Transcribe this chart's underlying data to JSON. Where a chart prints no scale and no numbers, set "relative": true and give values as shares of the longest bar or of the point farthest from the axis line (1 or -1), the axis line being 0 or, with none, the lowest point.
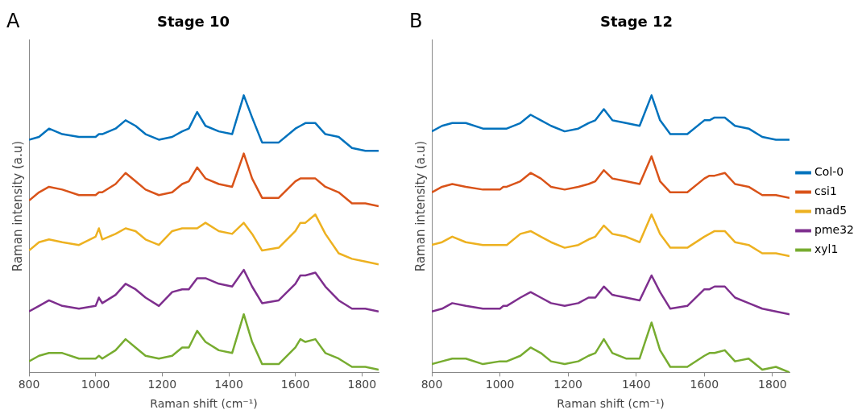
{
  "chart_data": [
    {
      "type": "line",
      "title": "Stage 10",
      "xlabel": "Raman shift (cm⁻¹)",
      "ylabel": "Raman intensity (a.u)",
      "annotations": [
        "A"
      ],
      "relative": true,
      "grid": false,
      "legend": false,
      "tick_labels": "x",
      "xlim": [
        800,
        1850
      ],
      "xticks": [
        800,
        1000,
        1200,
        1400,
        1600,
        1800
      ],
      "x": [
        800,
        830,
        860,
        900,
        950,
        1000,
        1010,
        1020,
        1060,
        1090,
        1120,
        1150,
        1190,
        1230,
        1260,
        1280,
        1305,
        1330,
        1370,
        1410,
        1445,
        1470,
        1500,
        1550,
        1600,
        1615,
        1630,
        1660,
        1690,
        1730,
        1770,
        1810,
        1850
      ],
      "series": [
        {
          "color": "#0072bd",
          "values": [
            0.84,
            0.85,
            0.88,
            0.86,
            0.85,
            0.85,
            0.86,
            0.86,
            0.88,
            0.91,
            0.89,
            0.86,
            0.84,
            0.85,
            0.87,
            0.88,
            0.94,
            0.89,
            0.87,
            0.86,
            1.0,
            0.92,
            0.83,
            0.83,
            0.88,
            0.89,
            0.9,
            0.9,
            0.86,
            0.85,
            0.81,
            0.8,
            0.8
          ]
        },
        {
          "color": "#d95319",
          "values": [
            0.62,
            0.65,
            0.67,
            0.66,
            0.64,
            0.64,
            0.65,
            0.65,
            0.68,
            0.72,
            0.69,
            0.66,
            0.64,
            0.65,
            0.68,
            0.69,
            0.74,
            0.7,
            0.68,
            0.67,
            0.79,
            0.7,
            0.63,
            0.63,
            0.69,
            0.7,
            0.7,
            0.7,
            0.67,
            0.65,
            0.61,
            0.61,
            0.6
          ]
        },
        {
          "color": "#edb120",
          "values": [
            0.44,
            0.47,
            0.48,
            0.47,
            0.46,
            0.49,
            0.52,
            0.48,
            0.5,
            0.52,
            0.51,
            0.48,
            0.46,
            0.51,
            0.52,
            0.52,
            0.52,
            0.54,
            0.51,
            0.5,
            0.54,
            0.5,
            0.44,
            0.45,
            0.51,
            0.54,
            0.54,
            0.57,
            0.5,
            0.43,
            0.41,
            0.4,
            0.39
          ]
        },
        {
          "color": "#7e2f8e",
          "values": [
            0.22,
            0.24,
            0.26,
            0.24,
            0.23,
            0.24,
            0.27,
            0.25,
            0.28,
            0.32,
            0.3,
            0.27,
            0.24,
            0.29,
            0.3,
            0.3,
            0.34,
            0.34,
            0.32,
            0.31,
            0.37,
            0.31,
            0.25,
            0.26,
            0.32,
            0.35,
            0.35,
            0.36,
            0.31,
            0.26,
            0.23,
            0.23,
            0.22
          ]
        },
        {
          "color": "#77ac30",
          "values": [
            0.04,
            0.06,
            0.07,
            0.07,
            0.05,
            0.05,
            0.06,
            0.05,
            0.08,
            0.12,
            0.09,
            0.06,
            0.05,
            0.06,
            0.09,
            0.09,
            0.15,
            0.11,
            0.08,
            0.07,
            0.21,
            0.11,
            0.03,
            0.03,
            0.09,
            0.12,
            0.11,
            0.12,
            0.07,
            0.05,
            0.02,
            0.02,
            0.01
          ]
        }
      ]
    },
    {
      "type": "line",
      "title": "Stage 12",
      "xlabel": "Raman shift (cm⁻¹)",
      "ylabel": "Raman intensity (a.u)",
      "annotations": [
        "B"
      ],
      "relative": true,
      "grid": false,
      "legend": "right",
      "tick_labels": "x",
      "xlim": [
        800,
        1850
      ],
      "xticks": [
        800,
        1000,
        1200,
        1400,
        1600,
        1800
      ],
      "x": [
        800,
        830,
        860,
        900,
        950,
        1000,
        1010,
        1020,
        1060,
        1090,
        1120,
        1150,
        1190,
        1230,
        1260,
        1280,
        1305,
        1330,
        1370,
        1410,
        1445,
        1470,
        1500,
        1550,
        1600,
        1615,
        1630,
        1660,
        1690,
        1730,
        1770,
        1810,
        1850
      ],
      "series": [
        {
          "name": "Col-0",
          "color": "#0072bd",
          "values": [
            0.87,
            0.89,
            0.9,
            0.9,
            0.88,
            0.88,
            0.88,
            0.88,
            0.9,
            0.93,
            0.91,
            0.89,
            0.87,
            0.88,
            0.9,
            0.91,
            0.95,
            0.91,
            0.9,
            0.89,
            1.0,
            0.91,
            0.86,
            0.86,
            0.91,
            0.91,
            0.92,
            0.92,
            0.89,
            0.88,
            0.85,
            0.84,
            0.84
          ]
        },
        {
          "name": "csi1",
          "color": "#d95319",
          "values": [
            0.65,
            0.67,
            0.68,
            0.67,
            0.66,
            0.66,
            0.67,
            0.67,
            0.69,
            0.72,
            0.7,
            0.67,
            0.66,
            0.67,
            0.68,
            0.69,
            0.73,
            0.7,
            0.69,
            0.68,
            0.78,
            0.69,
            0.65,
            0.65,
            0.7,
            0.71,
            0.71,
            0.72,
            0.68,
            0.67,
            0.64,
            0.64,
            0.63
          ]
        },
        {
          "name": "mad5",
          "color": "#edb120",
          "values": [
            0.46,
            0.47,
            0.49,
            0.47,
            0.46,
            0.46,
            0.46,
            0.46,
            0.5,
            0.51,
            0.49,
            0.47,
            0.45,
            0.46,
            0.48,
            0.49,
            0.53,
            0.5,
            0.49,
            0.47,
            0.57,
            0.5,
            0.45,
            0.45,
            0.49,
            0.5,
            0.51,
            0.51,
            0.47,
            0.46,
            0.43,
            0.43,
            0.42
          ]
        },
        {
          "name": "pme32",
          "color": "#7e2f8e",
          "values": [
            0.22,
            0.23,
            0.25,
            0.24,
            0.23,
            0.23,
            0.24,
            0.24,
            0.27,
            0.29,
            0.27,
            0.25,
            0.24,
            0.25,
            0.27,
            0.27,
            0.31,
            0.28,
            0.27,
            0.26,
            0.35,
            0.29,
            0.23,
            0.24,
            0.3,
            0.3,
            0.31,
            0.31,
            0.27,
            0.25,
            0.23,
            0.22,
            0.21
          ]
        },
        {
          "name": "xyl1",
          "color": "#77ac30",
          "values": [
            0.03,
            0.04,
            0.05,
            0.05,
            0.03,
            0.04,
            0.04,
            0.04,
            0.06,
            0.09,
            0.07,
            0.04,
            0.03,
            0.04,
            0.06,
            0.07,
            0.12,
            0.07,
            0.05,
            0.05,
            0.18,
            0.08,
            0.02,
            0.02,
            0.06,
            0.07,
            0.07,
            0.08,
            0.04,
            0.05,
            0.01,
            0.02,
            0.0
          ]
        }
      ]
    }
  ]
}
